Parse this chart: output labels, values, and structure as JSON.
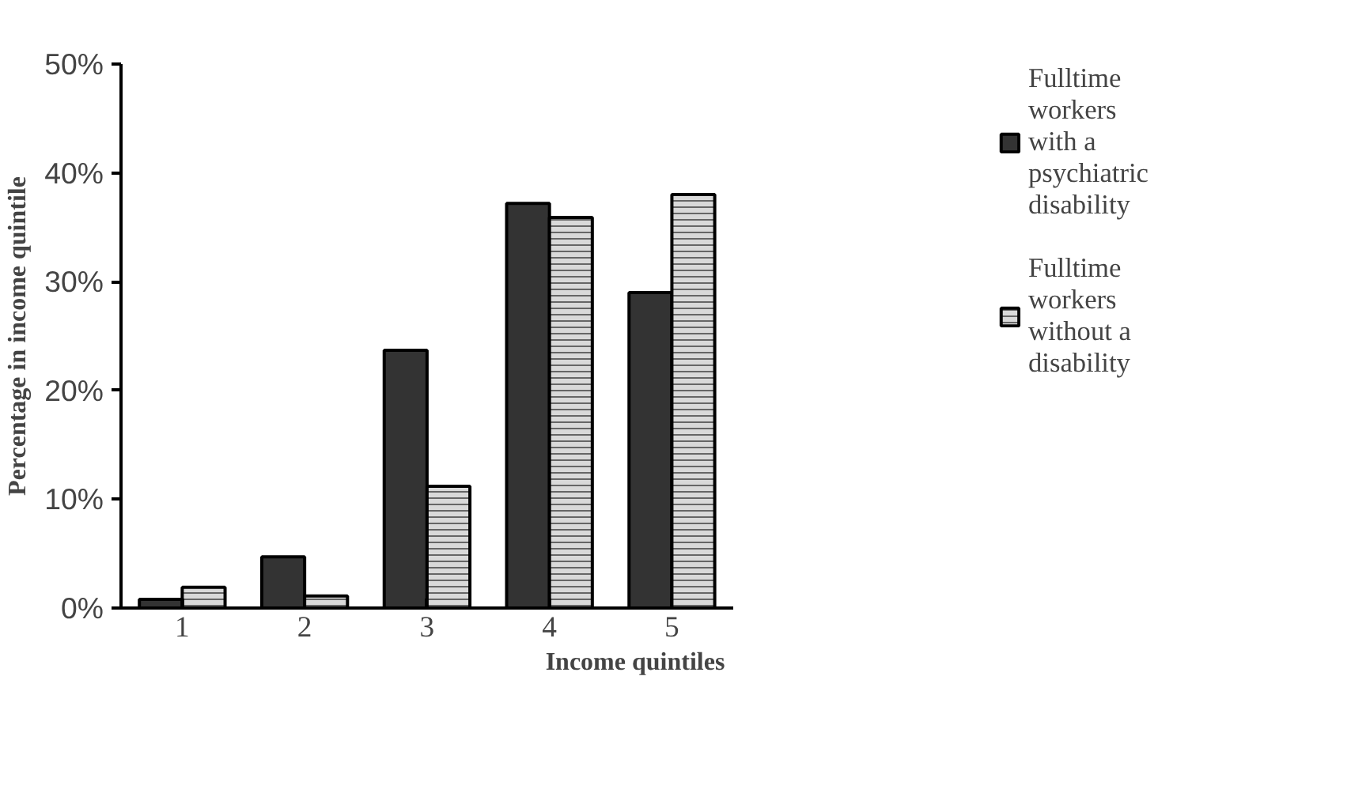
{
  "chart_data": {
    "type": "bar",
    "xlabel": "Income quintiles",
    "ylabel": "Percentage in income quintile",
    "categories": [
      "1",
      "2",
      "3",
      "4",
      "5"
    ],
    "series": [
      {
        "name": "Fulltime workers with a psychiatric disability",
        "color": "#333333",
        "values": [
          0.8,
          4.7,
          23.7,
          37.2,
          29.0
        ]
      },
      {
        "name": "Fulltime workers without a disability",
        "color": "#d9d9d9",
        "values": [
          1.9,
          1.1,
          11.2,
          35.9,
          38.0
        ]
      }
    ],
    "ylim": [
      0,
      50
    ],
    "yticks": [
      {
        "value": 0,
        "label": "0%"
      },
      {
        "value": 10,
        "label": "10%"
      },
      {
        "value": 20,
        "label": "20%"
      },
      {
        "value": 30,
        "label": "30%"
      },
      {
        "value": 40,
        "label": "40%"
      },
      {
        "value": 50,
        "label": "50%"
      }
    ],
    "grid": false,
    "legend": "right"
  }
}
